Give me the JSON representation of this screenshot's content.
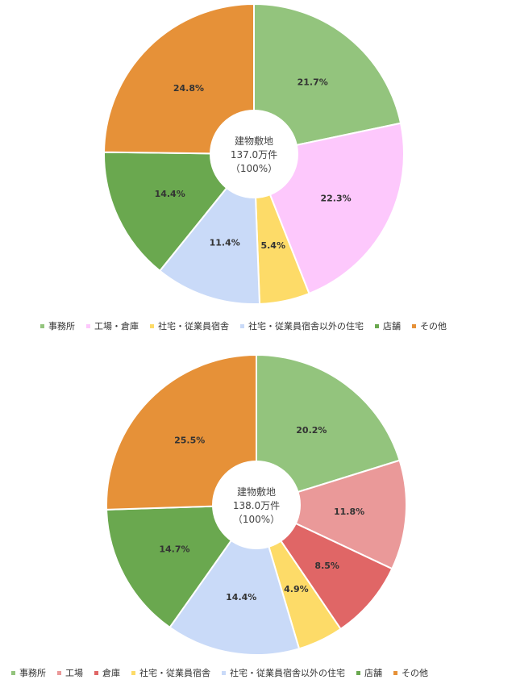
{
  "chart_data": [
    {
      "type": "pie",
      "center_label": [
        "建物敷地",
        "137.0万件",
        "（100%）"
      ],
      "categories": [
        "事務所",
        "工場・倉庫",
        "社宅・従業員宿舎",
        "社宅・従業員宿舎以外の住宅",
        "店舗",
        "その他"
      ],
      "values": [
        21.7,
        22.3,
        5.4,
        11.4,
        14.4,
        24.8
      ],
      "labels": [
        "21.7%",
        "22.3%",
        "5.4%",
        "11.4%",
        "14.4%",
        "24.8%"
      ],
      "colors": [
        "#93c47d",
        "#fdc8fc",
        "#fddb68",
        "#c9daf8",
        "#6aa84f",
        "#e69138"
      ],
      "legend_position": "bottom"
    },
    {
      "type": "pie",
      "center_label": [
        "建物敷地",
        "138.0万件",
        "（100%）"
      ],
      "categories": [
        "事務所",
        "工場",
        "倉庫",
        "社宅・従業員宿舎",
        "社宅・従業員宿舎以外の住宅",
        "店舗",
        "その他"
      ],
      "values": [
        20.2,
        11.8,
        8.5,
        4.9,
        14.4,
        14.7,
        25.5
      ],
      "labels": [
        "20.2%",
        "11.8%",
        "8.5%",
        "4.9%",
        "14.4%",
        "14.7%",
        "25.5%"
      ],
      "colors": [
        "#93c47d",
        "#ea9999",
        "#e06666",
        "#fddb68",
        "#c9daf8",
        "#6aa84f",
        "#e69138"
      ],
      "legend_position": "bottom"
    }
  ]
}
